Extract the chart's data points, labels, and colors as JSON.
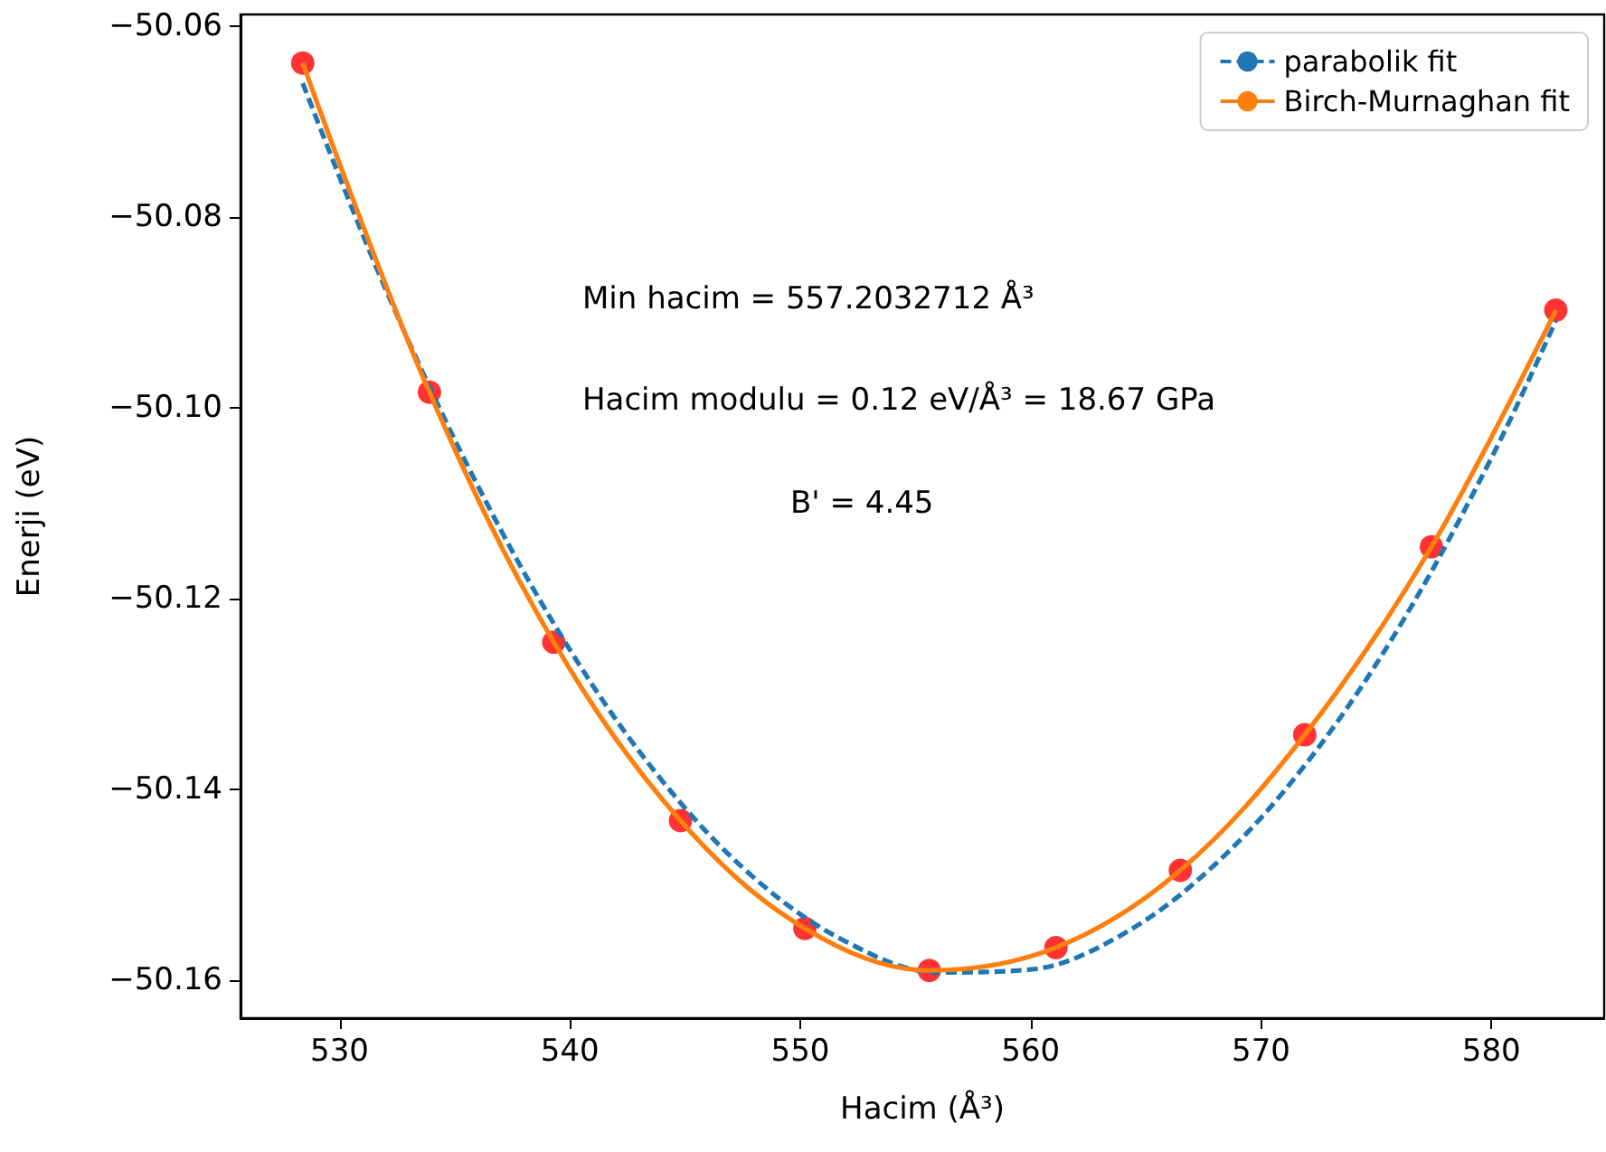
{
  "chart_data": {
    "type": "scatter",
    "xlabel": "Hacim (Å³)",
    "ylabel": "Enerji (eV)",
    "annotations": [
      "Min hacim = 557.2032712 Å³",
      "Hacim modulu = 0.12 eV/Å³ = 18.67 GPa",
      "B' = 4.45"
    ],
    "x": [
      528.4,
      533.9,
      539.3,
      544.8,
      550.2,
      555.6,
      561.1,
      566.5,
      571.9,
      577.4,
      582.8
    ],
    "series": [
      {
        "color": "#ff0000",
        "marker": "circle",
        "values": [
          -50.0639,
          -50.0984,
          -50.1246,
          -50.1433,
          -50.1546,
          -50.159,
          -50.1566,
          -50.1485,
          -50.1343,
          -50.1146,
          -50.0898
        ]
      },
      {
        "type": "line",
        "name": "parabolik fit",
        "color": "#1f77b4",
        "line_style": "dashed",
        "marker": "none",
        "x": [
          528.4,
          532,
          536,
          540,
          544,
          548,
          552,
          556,
          560,
          564,
          568,
          572,
          576,
          580,
          582.8
        ],
        "values": [
          -50.066,
          -50.0876,
          -50.1082,
          -50.1254,
          -50.1391,
          -50.1493,
          -50.156,
          -50.1592,
          -50.1589,
          -50.1552,
          -50.1479,
          -50.1372,
          -50.123,
          -50.1053,
          -50.0909
        ]
      },
      {
        "type": "line",
        "name": "Birch-Murnaghan fit",
        "color": "#ff7f0e",
        "line_style": "solid",
        "marker": "none",
        "x": [
          528.4,
          533.9,
          539.3,
          544.8,
          550.2,
          555.6,
          561.1,
          566.5,
          571.9,
          577.4,
          582.8
        ],
        "values": [
          -50.0639,
          -50.0984,
          -50.1246,
          -50.1433,
          -50.1546,
          -50.159,
          -50.1566,
          -50.1485,
          -50.1343,
          -50.1146,
          -50.0898
        ]
      }
    ],
    "xlim": [
      525.7,
      584.9
    ],
    "ylim": [
      -50.164,
      -50.0588
    ],
    "xticks": [
      530,
      540,
      550,
      560,
      570,
      580
    ],
    "yticks": [
      {
        "value": -50.16,
        "label": "−50.16"
      },
      {
        "value": -50.14,
        "label": "−50.14"
      },
      {
        "value": -50.12,
        "label": "−50.12"
      },
      {
        "value": -50.1,
        "label": "−50.10"
      },
      {
        "value": -50.08,
        "label": "−50.08"
      },
      {
        "value": -50.06,
        "label": "−50.06"
      }
    ],
    "legend": "top right",
    "grid": false
  }
}
